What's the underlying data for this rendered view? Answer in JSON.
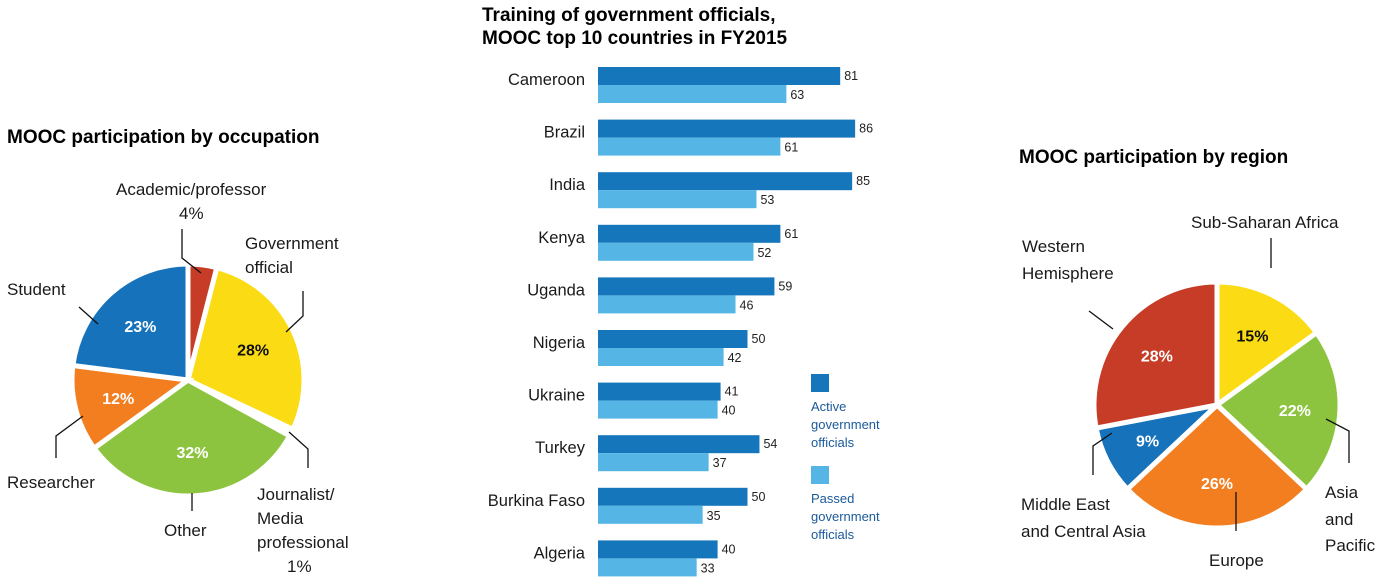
{
  "chart_data": [
    {
      "type": "pie",
      "title": "MOOC participation by occupation",
      "slices": [
        {
          "label": "Academic/professor",
          "value": 4,
          "pct_label": "4%",
          "color": "#c63c27"
        },
        {
          "label": "Government official",
          "value": 28,
          "pct_label": "28%",
          "color": "#fbdb13"
        },
        {
          "label": "Journalist/ Media professional",
          "value": 1,
          "pct_label": "1%",
          "color": "#ffffff"
        },
        {
          "label": "Other",
          "value": 32,
          "pct_label": "32%",
          "color": "#8cc43f"
        },
        {
          "label": "Researcher",
          "value": 12,
          "pct_label": "12%",
          "color": "#f27e20"
        },
        {
          "label": "Student",
          "value": 23,
          "pct_label": "23%",
          "color": "#1672bb"
        }
      ]
    },
    {
      "type": "bar",
      "orientation": "horizontal",
      "title": "Training of government officials,",
      "subtitle": "MOOC top 10 countries in FY2015",
      "categories": [
        "Cameroon",
        "Brazil",
        "India",
        "Kenya",
        "Uganda",
        "Nigeria",
        "Ukraine",
        "Turkey",
        "Burkina Faso",
        "Algeria"
      ],
      "series": [
        {
          "name": "Active government officials",
          "legend_lines": [
            "Active",
            "government",
            "officials"
          ],
          "color": "#1576bc",
          "values": [
            81,
            86,
            85,
            61,
            59,
            50,
            41,
            54,
            50,
            40
          ]
        },
        {
          "name": "Passed government officials",
          "legend_lines": [
            "Passed",
            "government",
            "officials"
          ],
          "color": "#55b6e6",
          "values": [
            63,
            61,
            53,
            52,
            46,
            42,
            40,
            37,
            35,
            33
          ]
        }
      ],
      "xlim": [
        0,
        90
      ],
      "grid": false,
      "legend": "right"
    },
    {
      "type": "pie",
      "title": "MOOC participation by region",
      "slices": [
        {
          "label": "Sub-Saharan Africa",
          "value": 15,
          "pct_label": "15%",
          "color": "#fbdb13"
        },
        {
          "label": "Asia and Pacific",
          "value": 22,
          "pct_label": "22%",
          "color": "#8cc43f"
        },
        {
          "label": "Europe",
          "value": 26,
          "pct_label": "26%",
          "color": "#f27e20"
        },
        {
          "label": "Middle East and Central Asia",
          "value": 9,
          "pct_label": "9%",
          "color": "#1672bb"
        },
        {
          "label": "Western Hemisphere",
          "value": 28,
          "pct_label": "28%",
          "color": "#c63c27"
        }
      ]
    }
  ]
}
